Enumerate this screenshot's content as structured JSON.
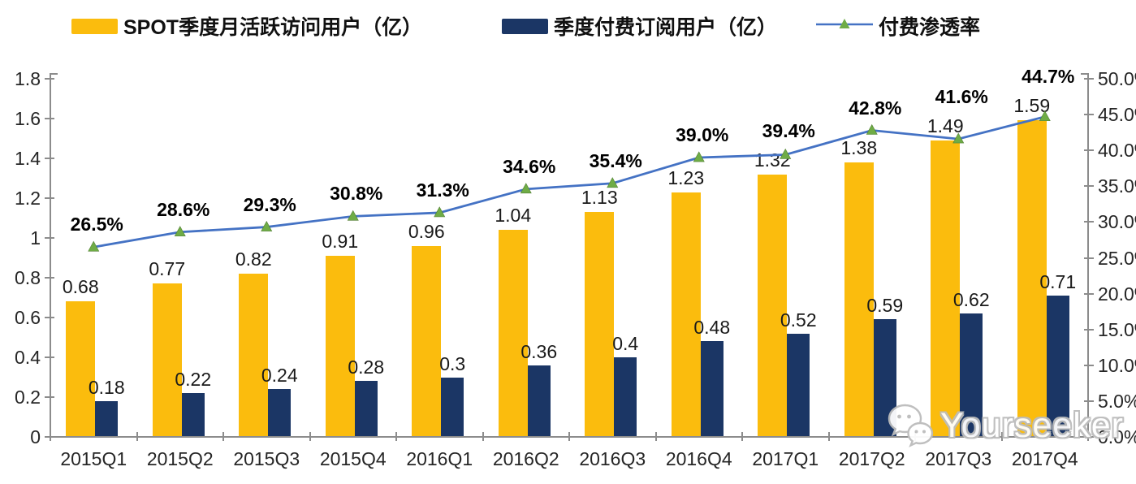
{
  "legend": [
    {
      "label": "SPOT季度月活跃访问用户（亿）",
      "type": "bar",
      "color": "#FBBC0D"
    },
    {
      "label": "季度付费订阅用户（亿）",
      "type": "bar",
      "color": "#1B3665"
    },
    {
      "label": "付费渗透率",
      "type": "line",
      "color": "#4472C4",
      "marker_color": "#6FAC46"
    }
  ],
  "chart_data": {
    "type": "bar",
    "subtype": "grouped-bars-with-line",
    "categories": [
      "2015Q1",
      "2015Q2",
      "2015Q3",
      "2015Q4",
      "2016Q1",
      "2016Q2",
      "2016Q3",
      "2016Q4",
      "2017Q1",
      "2017Q2",
      "2017Q3",
      "2017Q4"
    ],
    "series": [
      {
        "name": "SPOT季度月活跃访问用户（亿）",
        "type": "bar",
        "axis": "left",
        "color": "#FBBC0D",
        "values": [
          0.68,
          0.77,
          0.82,
          0.91,
          0.96,
          1.04,
          1.13,
          1.23,
          1.32,
          1.38,
          1.49,
          1.59
        ],
        "labels": [
          "0.68",
          "0.77",
          "0.82",
          "0.91",
          "0.96",
          "1.04",
          "1.13",
          "1.23",
          "1.32",
          "1.38",
          "1.49",
          "1.59"
        ]
      },
      {
        "name": "季度付费订阅用户（亿）",
        "type": "bar",
        "axis": "left",
        "color": "#1B3665",
        "values": [
          0.18,
          0.22,
          0.24,
          0.28,
          0.3,
          0.36,
          0.4,
          0.48,
          0.52,
          0.59,
          0.62,
          0.71
        ],
        "labels": [
          "0.18",
          "0.22",
          "0.24",
          "0.28",
          "0.3",
          "0.36",
          "0.4",
          "0.48",
          "0.52",
          "0.59",
          "0.62",
          "0.71"
        ]
      },
      {
        "name": "付费渗透率",
        "type": "line",
        "axis": "right",
        "color": "#4472C4",
        "marker": "triangle",
        "marker_color": "#6FAC46",
        "values": [
          26.5,
          28.6,
          29.3,
          30.8,
          31.3,
          34.6,
          35.4,
          39.0,
          39.4,
          42.8,
          41.6,
          44.7
        ],
        "labels": [
          "26.5%",
          "28.6%",
          "29.3%",
          "30.8%",
          "31.3%",
          "34.6%",
          "35.4%",
          "39.0%",
          "39.4%",
          "42.8%",
          "41.6%",
          "44.7%"
        ]
      }
    ],
    "left_axis": {
      "min": 0,
      "max": 1.8,
      "step": 0.2,
      "ticks": [
        "0",
        "0.2",
        "0.4",
        "0.6",
        "0.8",
        "1",
        "1.2",
        "1.4",
        "1.6",
        "1.8"
      ]
    },
    "right_axis": {
      "min": 0,
      "max": 50,
      "step": 5,
      "ticks": [
        "0.0%",
        "5.0%",
        "10.0%",
        "15.0%",
        "20.0%",
        "25.0%",
        "30.0%",
        "35.0%",
        "40.0%",
        "45.0%",
        "50.0%"
      ]
    },
    "grid": false,
    "legend_position": "top"
  },
  "watermark": {
    "text": "Yourseeker",
    "icon": "wechat-icon",
    "text_color": "#ffffff",
    "outline_color": "#bcbcbc"
  }
}
